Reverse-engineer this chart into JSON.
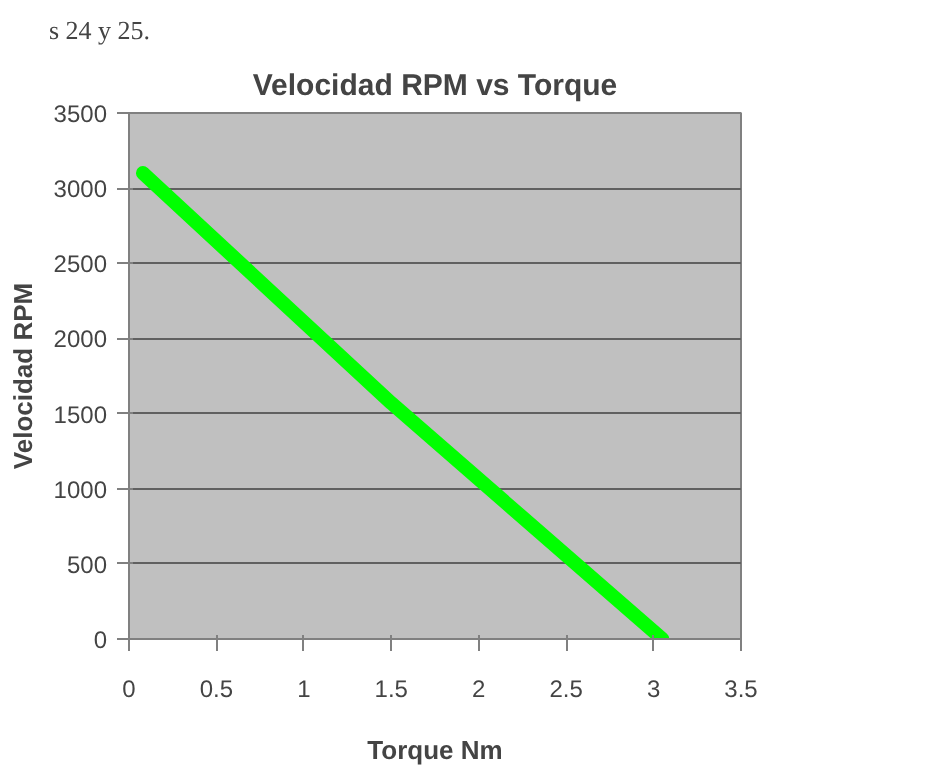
{
  "chart_data": {
    "type": "line",
    "title": "Velocidad RPM vs Torque",
    "xlabel": "Torque Nm",
    "ylabel": "Velocidad RPM",
    "annotations": [
      "s 24 y 25."
    ],
    "x": [
      0.08,
      1.5,
      3.05
    ],
    "series": [
      {
        "color": "#00ff00",
        "values": [
          3100,
          1570,
          0
        ]
      }
    ],
    "xlim": [
      0,
      3.5
    ],
    "xticks": [
      0,
      0.5,
      1,
      1.5,
      2,
      2.5,
      3,
      3.5
    ],
    "ylim": [
      0,
      3500
    ],
    "yticks": [
      0,
      500,
      1000,
      1500,
      2000,
      2500,
      3000,
      3500
    ],
    "grid": "y",
    "marker": "none",
    "line_style": "solid"
  }
}
